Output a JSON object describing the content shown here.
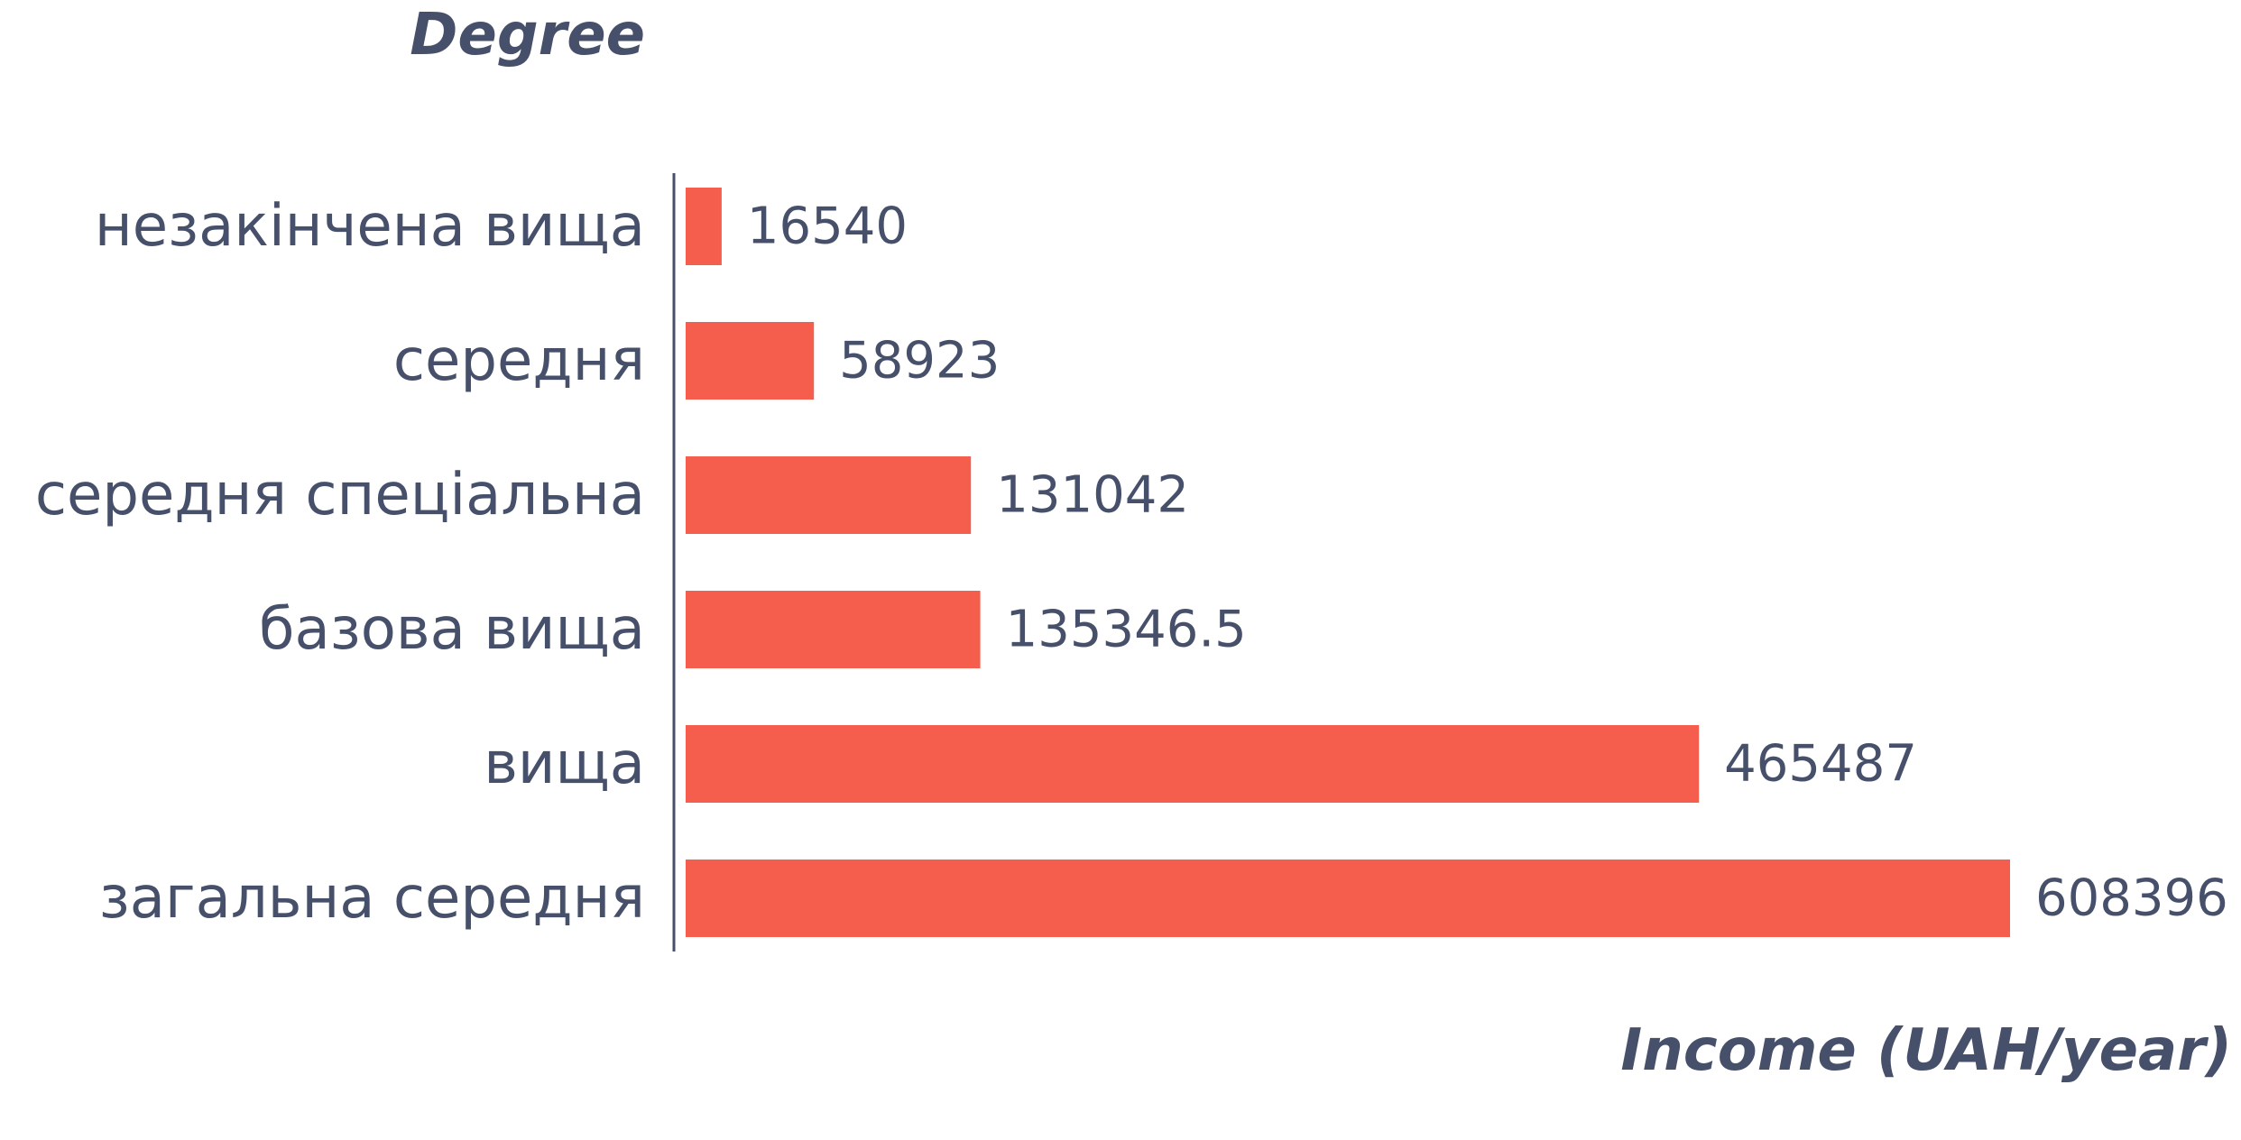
{
  "chart_data": {
    "type": "bar",
    "orientation": "horizontal",
    "ylabel": "Degree",
    "xlabel": "Income (UAH/year)",
    "categories": [
      "незакінчена вища",
      "середня",
      "середня спеціальна",
      "базова вища",
      "вища",
      "загальна середня"
    ],
    "values": [
      16540,
      58923,
      131042,
      135346.5,
      465487,
      608396
    ],
    "value_labels": [
      "16540",
      "58923",
      "131042",
      "135346.5",
      "465487",
      "608396"
    ],
    "xlim": [
      0,
      608396
    ],
    "grid": false,
    "legend": "none",
    "colors": {
      "bar": "#f55d4c",
      "text": "#47506a",
      "axis": "#47506a"
    }
  }
}
